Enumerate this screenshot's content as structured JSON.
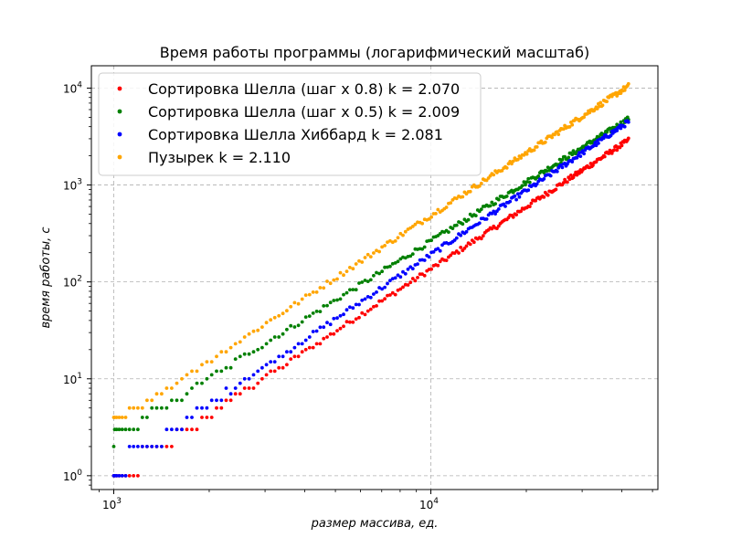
{
  "chart_data": {
    "type": "scatter",
    "title": "Время работы программы (логарифмический масштаб)",
    "xlabel": "размер массива, ед.",
    "ylabel": "время работы, с",
    "xscale": "log",
    "yscale": "log",
    "xlim": [
      850,
      52000
    ],
    "ylim": [
      0.72,
      17000
    ],
    "grid": true,
    "legend_position": "top-left",
    "x_ticks": [
      {
        "value": 1000,
        "base": "10",
        "exp": "3"
      },
      {
        "value": 10000,
        "base": "10",
        "exp": "4"
      }
    ],
    "y_ticks": [
      {
        "value": 1,
        "base": "10",
        "exp": "0"
      },
      {
        "value": 10,
        "base": "10",
        "exp": "1"
      },
      {
        "value": 100,
        "base": "10",
        "exp": "2"
      },
      {
        "value": 1000,
        "base": "10",
        "exp": "3"
      },
      {
        "value": 10000,
        "base": "10",
        "exp": "4"
      }
    ],
    "x_range": [
      1000,
      42000
    ],
    "points_per_series": 230,
    "series": [
      {
        "name": "Сортировка Шелла (шаг х 0.8) k = 2.070",
        "color": "#ff0000",
        "y_start": 1,
        "y_end": 2900,
        "k": 2.07
      },
      {
        "name": "Сортировка Шелла (шаг х 0.5) k = 2.009",
        "color": "#008000",
        "y_start": 2.5,
        "y_end": 4800,
        "k": 2.009
      },
      {
        "name": "Сортировка Шелла Хиббард k = 2.081",
        "color": "#0000ff",
        "y_start": 1.2,
        "y_end": 4500,
        "k": 2.081
      },
      {
        "name": "Пузырек k = 2.110",
        "color": "#ffa500",
        "y_start": 3.5,
        "y_end": 10500,
        "k": 2.11
      }
    ]
  }
}
